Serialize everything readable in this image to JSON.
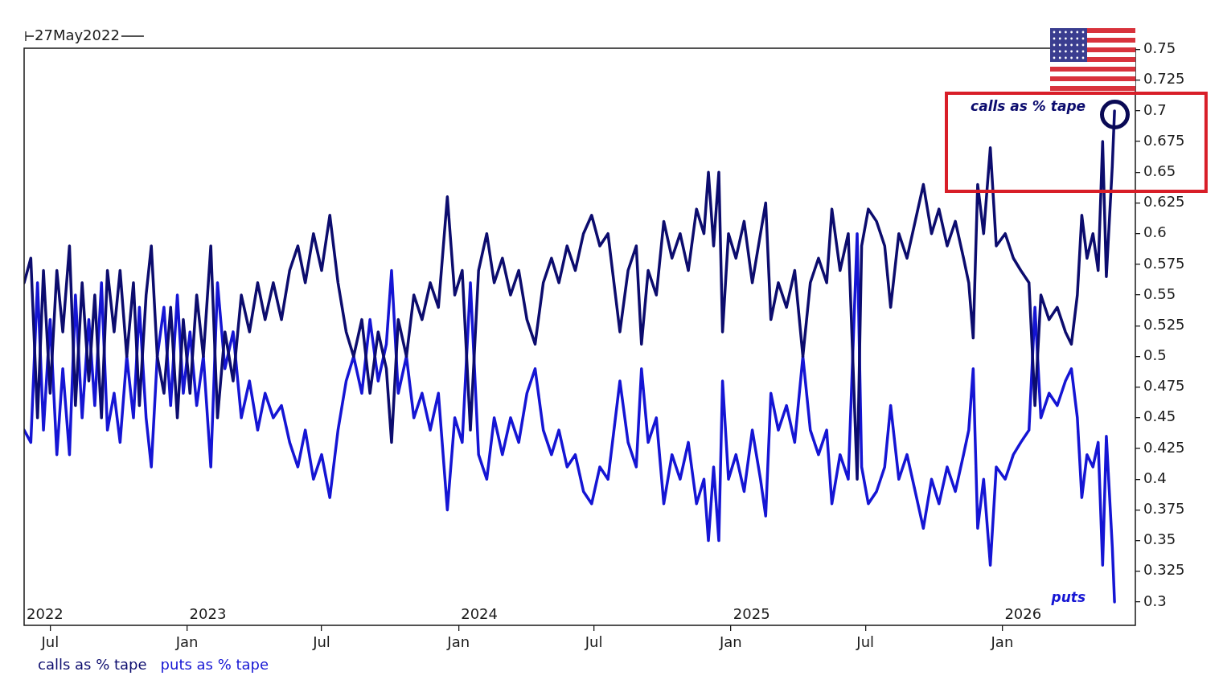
{
  "chart_data": {
    "type": "line",
    "title": "27May2022",
    "x": [
      "2022-05-27",
      "2022-06-05",
      "2022-06-14",
      "2022-06-22",
      "2022-07-01",
      "2022-07-10",
      "2022-07-18",
      "2022-07-27",
      "2022-08-04",
      "2022-08-13",
      "2022-08-22",
      "2022-08-30",
      "2022-09-08",
      "2022-09-16",
      "2022-09-25",
      "2022-10-03",
      "2022-10-12",
      "2022-10-21",
      "2022-10-29",
      "2022-11-07",
      "2022-11-14",
      "2022-11-22",
      "2022-12-01",
      "2022-12-10",
      "2022-12-19",
      "2022-12-27",
      "2023-01-05",
      "2023-01-14",
      "2023-01-23",
      "2023-02-02",
      "2023-02-11",
      "2023-02-21",
      "2023-03-04",
      "2023-03-15",
      "2023-03-26",
      "2023-04-06",
      "2023-04-16",
      "2023-04-27",
      "2023-05-08",
      "2023-05-19",
      "2023-05-30",
      "2023-06-09",
      "2023-06-20",
      "2023-07-01",
      "2023-07-12",
      "2023-07-23",
      "2023-08-03",
      "2023-08-13",
      "2023-08-24",
      "2023-09-04",
      "2023-09-15",
      "2023-09-26",
      "2023-10-03",
      "2023-10-12",
      "2023-10-23",
      "2023-11-02",
      "2023-11-13",
      "2023-11-24",
      "2023-12-05",
      "2023-12-17",
      "2023-12-27",
      "2024-01-06",
      "2024-01-17",
      "2024-01-28",
      "2024-02-08",
      "2024-02-18",
      "2024-02-29",
      "2024-03-11",
      "2024-03-22",
      "2024-04-02",
      "2024-04-13",
      "2024-04-24",
      "2024-05-05",
      "2024-05-15",
      "2024-05-26",
      "2024-06-06",
      "2024-06-17",
      "2024-06-28",
      "2024-07-09",
      "2024-07-20",
      "2024-08-05",
      "2024-08-16",
      "2024-08-27",
      "2024-09-03",
      "2024-09-12",
      "2024-09-23",
      "2024-10-03",
      "2024-10-14",
      "2024-10-25",
      "2024-11-05",
      "2024-11-16",
      "2024-11-26",
      "2024-12-02",
      "2024-12-09",
      "2024-12-16",
      "2024-12-21",
      "2024-12-29",
      "2025-01-08",
      "2025-01-19",
      "2025-01-30",
      "2025-02-10",
      "2025-02-17",
      "2025-02-24",
      "2025-03-06",
      "2025-03-17",
      "2025-03-28",
      "2025-04-08",
      "2025-04-18",
      "2025-04-29",
      "2025-05-10",
      "2025-05-17",
      "2025-05-28",
      "2025-06-08",
      "2025-06-20",
      "2025-06-26",
      "2025-07-05",
      "2025-07-16",
      "2025-07-27",
      "2025-08-04",
      "2025-08-15",
      "2025-08-26",
      "2025-09-06",
      "2025-09-17",
      "2025-09-28",
      "2025-10-08",
      "2025-10-19",
      "2025-10-30",
      "2025-11-10",
      "2025-11-17",
      "2025-11-23",
      "2025-11-29",
      "2025-12-07",
      "2025-12-16",
      "2025-12-24",
      "2026-01-05",
      "2026-01-16",
      "2026-01-26",
      "2026-02-06",
      "2026-02-14",
      "2026-02-22",
      "2026-03-05",
      "2026-03-16",
      "2026-03-27",
      "2026-04-04",
      "2026-04-12",
      "2026-04-18",
      "2026-04-25",
      "2026-05-03",
      "2026-05-10",
      "2026-05-16",
      "2026-05-21",
      "2026-05-25",
      "2026-05-29",
      "2026-06-01"
    ],
    "series": [
      {
        "name": "calls as % tape",
        "color": "#0c0c6e",
        "values": [
          0.56,
          0.58,
          0.45,
          0.57,
          0.47,
          0.57,
          0.52,
          0.59,
          0.46,
          0.56,
          0.48,
          0.55,
          0.45,
          0.57,
          0.52,
          0.57,
          0.5,
          0.56,
          0.46,
          0.55,
          0.59,
          0.5,
          0.47,
          0.54,
          0.45,
          0.53,
          0.47,
          0.55,
          0.5,
          0.59,
          0.45,
          0.52,
          0.48,
          0.55,
          0.52,
          0.56,
          0.53,
          0.56,
          0.53,
          0.57,
          0.59,
          0.56,
          0.6,
          0.57,
          0.615,
          0.56,
          0.52,
          0.5,
          0.53,
          0.47,
          0.52,
          0.49,
          0.43,
          0.53,
          0.5,
          0.55,
          0.53,
          0.56,
          0.54,
          0.63,
          0.55,
          0.57,
          0.44,
          0.57,
          0.6,
          0.56,
          0.58,
          0.55,
          0.57,
          0.53,
          0.51,
          0.56,
          0.58,
          0.56,
          0.59,
          0.57,
          0.6,
          0.615,
          0.59,
          0.6,
          0.52,
          0.57,
          0.59,
          0.51,
          0.57,
          0.55,
          0.61,
          0.58,
          0.6,
          0.57,
          0.62,
          0.6,
          0.65,
          0.59,
          0.65,
          0.52,
          0.6,
          0.58,
          0.61,
          0.56,
          0.6,
          0.625,
          0.53,
          0.56,
          0.54,
          0.57,
          0.5,
          0.56,
          0.58,
          0.56,
          0.62,
          0.57,
          0.6,
          0.4,
          0.59,
          0.62,
          0.61,
          0.59,
          0.54,
          0.6,
          0.58,
          0.61,
          0.64,
          0.6,
          0.62,
          0.59,
          0.61,
          0.58,
          0.56,
          0.515,
          0.64,
          0.6,
          0.67,
          0.59,
          0.6,
          0.58,
          0.57,
          0.56,
          0.46,
          0.55,
          0.53,
          0.54,
          0.52,
          0.51,
          0.55,
          0.615,
          0.58,
          0.6,
          0.57,
          0.675,
          0.565,
          0.61,
          0.655,
          0.7
        ]
      },
      {
        "name": "puts as % tape",
        "color": "#1515d4",
        "values": [
          0.44,
          0.43,
          0.56,
          0.44,
          0.53,
          0.42,
          0.49,
          0.42,
          0.55,
          0.45,
          0.53,
          0.46,
          0.56,
          0.44,
          0.47,
          0.43,
          0.5,
          0.45,
          0.54,
          0.45,
          0.41,
          0.5,
          0.54,
          0.46,
          0.55,
          0.47,
          0.52,
          0.46,
          0.5,
          0.41,
          0.56,
          0.49,
          0.52,
          0.45,
          0.48,
          0.44,
          0.47,
          0.45,
          0.46,
          0.43,
          0.41,
          0.44,
          0.4,
          0.42,
          0.385,
          0.44,
          0.48,
          0.5,
          0.47,
          0.53,
          0.48,
          0.51,
          0.57,
          0.47,
          0.5,
          0.45,
          0.47,
          0.44,
          0.47,
          0.375,
          0.45,
          0.43,
          0.56,
          0.42,
          0.4,
          0.45,
          0.42,
          0.45,
          0.43,
          0.47,
          0.49,
          0.44,
          0.42,
          0.44,
          0.41,
          0.42,
          0.39,
          0.38,
          0.41,
          0.4,
          0.48,
          0.43,
          0.41,
          0.49,
          0.43,
          0.45,
          0.38,
          0.42,
          0.4,
          0.43,
          0.38,
          0.4,
          0.35,
          0.41,
          0.35,
          0.48,
          0.4,
          0.42,
          0.39,
          0.44,
          0.4,
          0.37,
          0.47,
          0.44,
          0.46,
          0.43,
          0.5,
          0.44,
          0.42,
          0.44,
          0.38,
          0.42,
          0.4,
          0.6,
          0.41,
          0.38,
          0.39,
          0.41,
          0.46,
          0.4,
          0.42,
          0.39,
          0.36,
          0.4,
          0.38,
          0.41,
          0.39,
          0.42,
          0.44,
          0.49,
          0.36,
          0.4,
          0.33,
          0.41,
          0.4,
          0.42,
          0.43,
          0.44,
          0.54,
          0.45,
          0.47,
          0.46,
          0.48,
          0.49,
          0.45,
          0.385,
          0.42,
          0.41,
          0.43,
          0.33,
          0.435,
          0.39,
          0.345,
          0.3
        ]
      }
    ],
    "xlim": [
      "2022-05-27",
      "2026-06-29"
    ],
    "xticks": [
      {
        "value": "2022-07-01",
        "label": "Jul"
      },
      {
        "value": "2023-01-01",
        "label": "Jan"
      },
      {
        "value": "2023-07-01",
        "label": "Jul"
      },
      {
        "value": "2024-01-01",
        "label": "Jan"
      },
      {
        "value": "2024-07-01",
        "label": "Jul"
      },
      {
        "value": "2025-01-01",
        "label": "Jan"
      },
      {
        "value": "2025-07-01",
        "label": "Jul"
      },
      {
        "value": "2026-01-01",
        "label": "Jan"
      }
    ],
    "x2lim": [
      "2022-05-27",
      "2026-06-29"
    ],
    "x2ticks": [
      {
        "value": "2022-06-24",
        "label": "2022"
      },
      {
        "value": "2023-01-29",
        "label": "2023"
      },
      {
        "value": "2024-01-29",
        "label": "2024"
      },
      {
        "value": "2025-01-29",
        "label": "2025"
      },
      {
        "value": "2026-01-29",
        "label": "2026"
      }
    ],
    "ylim": [
      0.281,
      0.751
    ],
    "yticks": [
      0.3,
      0.325,
      0.35,
      0.375,
      0.4,
      0.425,
      0.45,
      0.475,
      0.5,
      0.525,
      0.55,
      0.575,
      0.6,
      0.625,
      0.65,
      0.675,
      0.7,
      0.725,
      0.75
    ],
    "annotations": [
      "calls as % tape",
      "puts"
    ],
    "legend": "bottom left",
    "marker": "none",
    "line_style": "solid"
  }
}
